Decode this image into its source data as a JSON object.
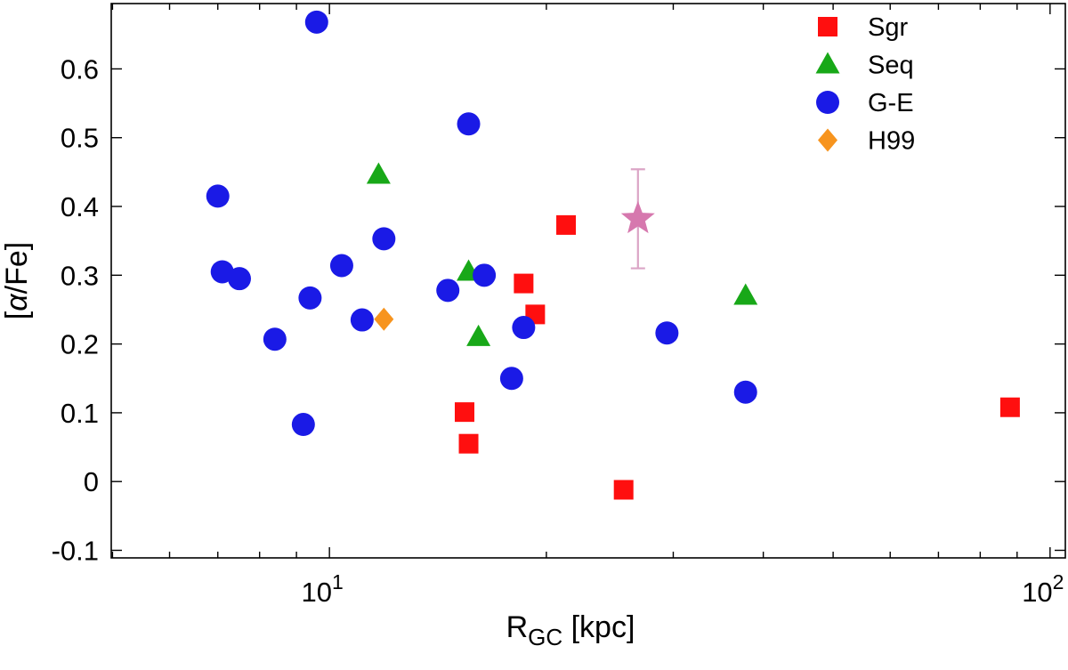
{
  "chart_data": {
    "type": "scatter",
    "title": "",
    "x_scale": "log",
    "xlim": [
      4.98,
      105
    ],
    "ylim": [
      -0.111,
      0.695
    ],
    "xlabel_parts": {
      "pre": "R",
      "sub": "GC",
      "post": " [kpc]"
    },
    "ylabel_parts": {
      "pre": "[",
      "italic": "α",
      "post": "/Fe]"
    },
    "x_major_ticks": [
      {
        "value": 10,
        "base": "10",
        "exp": "1"
      },
      {
        "value": 100,
        "base": "10",
        "exp": "2"
      }
    ],
    "x_minor_ticks": [
      5,
      6,
      7,
      8,
      9,
      20,
      30,
      40,
      50,
      60,
      70,
      80,
      90
    ],
    "y_ticks": [
      {
        "value": -0.1,
        "label": "-0.1"
      },
      {
        "value": 0,
        "label": "0"
      },
      {
        "value": 0.1,
        "label": "0.1"
      },
      {
        "value": 0.2,
        "label": "0.2"
      },
      {
        "value": 0.3,
        "label": "0.3"
      },
      {
        "value": 0.4,
        "label": "0.4"
      },
      {
        "value": 0.5,
        "label": "0.5"
      },
      {
        "value": 0.6,
        "label": "0.6"
      }
    ],
    "grid": false,
    "legend_position": "top-right-inside",
    "series": [
      {
        "name": "Sgr",
        "marker": "square",
        "color": "#ff0f0f",
        "in_legend": true,
        "points": [
          [
            15.4,
            0.101
          ],
          [
            15.6,
            0.055
          ],
          [
            18.6,
            0.288
          ],
          [
            19.3,
            0.243
          ],
          [
            21.3,
            0.373
          ],
          [
            25.6,
            -0.012
          ],
          [
            88.0,
            0.108
          ]
        ]
      },
      {
        "name": "Seq",
        "marker": "triangle",
        "color": "#18a818",
        "in_legend": true,
        "points": [
          [
            11.7,
            0.446
          ],
          [
            15.6,
            0.305
          ],
          [
            16.1,
            0.21
          ],
          [
            37.8,
            0.27
          ]
        ]
      },
      {
        "name": "G-E",
        "marker": "circle",
        "color": "#1a1ae6",
        "in_legend": true,
        "points": [
          [
            7.0,
            0.415
          ],
          [
            7.1,
            0.305
          ],
          [
            7.5,
            0.295
          ],
          [
            8.4,
            0.207
          ],
          [
            9.2,
            0.083
          ],
          [
            9.4,
            0.267
          ],
          [
            9.6,
            0.668
          ],
          [
            10.4,
            0.314
          ],
          [
            11.1,
            0.235
          ],
          [
            11.9,
            0.353
          ],
          [
            14.6,
            0.278
          ],
          [
            15.6,
            0.52
          ],
          [
            16.4,
            0.3
          ],
          [
            17.9,
            0.15
          ],
          [
            18.6,
            0.224
          ],
          [
            29.4,
            0.216
          ],
          [
            37.8,
            0.13
          ]
        ]
      },
      {
        "name": "H99",
        "marker": "diamond",
        "color": "#f7941e",
        "in_legend": true,
        "points": [
          [
            11.9,
            0.236
          ]
        ]
      },
      {
        "name": "unlabeled-star",
        "marker": "star",
        "color": "#d678ae",
        "in_legend": false,
        "points": [
          [
            26.8,
            0.382
          ]
        ],
        "yerr": [
          0.072
        ],
        "errorbar_color": "#dba5c6"
      }
    ]
  }
}
